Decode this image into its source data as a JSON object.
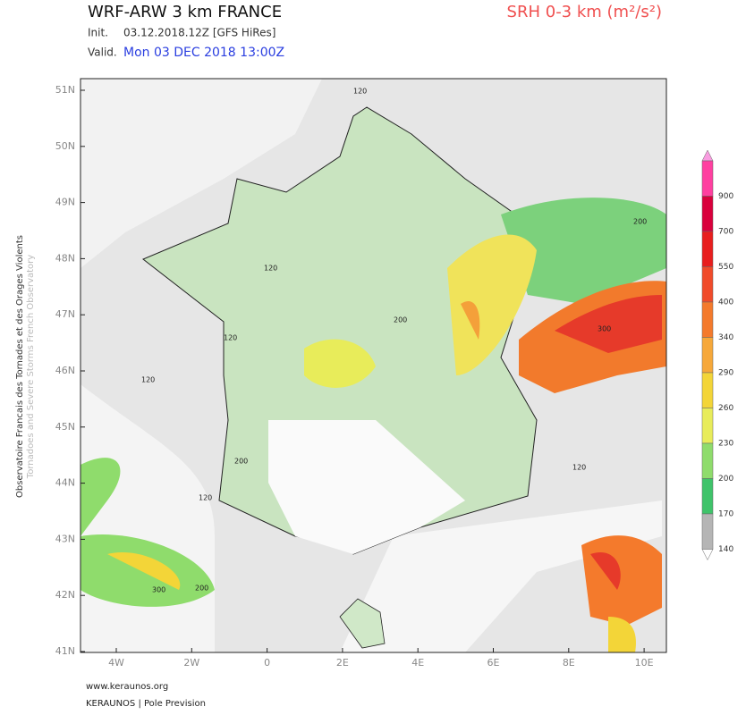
{
  "header": {
    "title": "WRF-ARW 3 km FRANCE",
    "parameter": "SRH 0-3 km (m²/s²)",
    "init_label": "Init.",
    "init_value": "03.12.2018.12Z [GFS HiRes]",
    "valid_label": "Valid.",
    "valid_value": "Mon 03 DEC 2018 13:00Z"
  },
  "map": {
    "lat_labels": [
      "51N",
      "50N",
      "49N",
      "48N",
      "47N",
      "46N",
      "45N",
      "44N",
      "43N",
      "42N",
      "41N"
    ],
    "lon_labels": [
      "4W",
      "2W",
      "0",
      "2E",
      "4E",
      "6E",
      "8E",
      "10E"
    ],
    "contour_labels": [
      "120",
      "120",
      "120",
      "120",
      "200",
      "200",
      "200",
      "300",
      "300",
      "120",
      "200",
      "120"
    ]
  },
  "side": {
    "line1": "Observatoire Francais des Tornades et des Orages Violents",
    "line2": "Tornadoes and Severe Storms French Observatory"
  },
  "colorbar": {
    "labels": [
      900,
      700,
      550,
      400,
      340,
      290,
      260,
      230,
      200,
      170,
      140
    ],
    "colors": [
      "#f99ce0",
      "#ff3fa0",
      "#d9003c",
      "#e81e1e",
      "#f04b2a",
      "#f47a2c",
      "#f6a83a",
      "#f3d538",
      "#e8ec5a",
      "#8fdc6c",
      "#3fc36a",
      "#b5b5b5"
    ]
  },
  "footer": {
    "site": "www.keraunos.org",
    "brand": "KERAUNOS | Pole Prevision"
  }
}
